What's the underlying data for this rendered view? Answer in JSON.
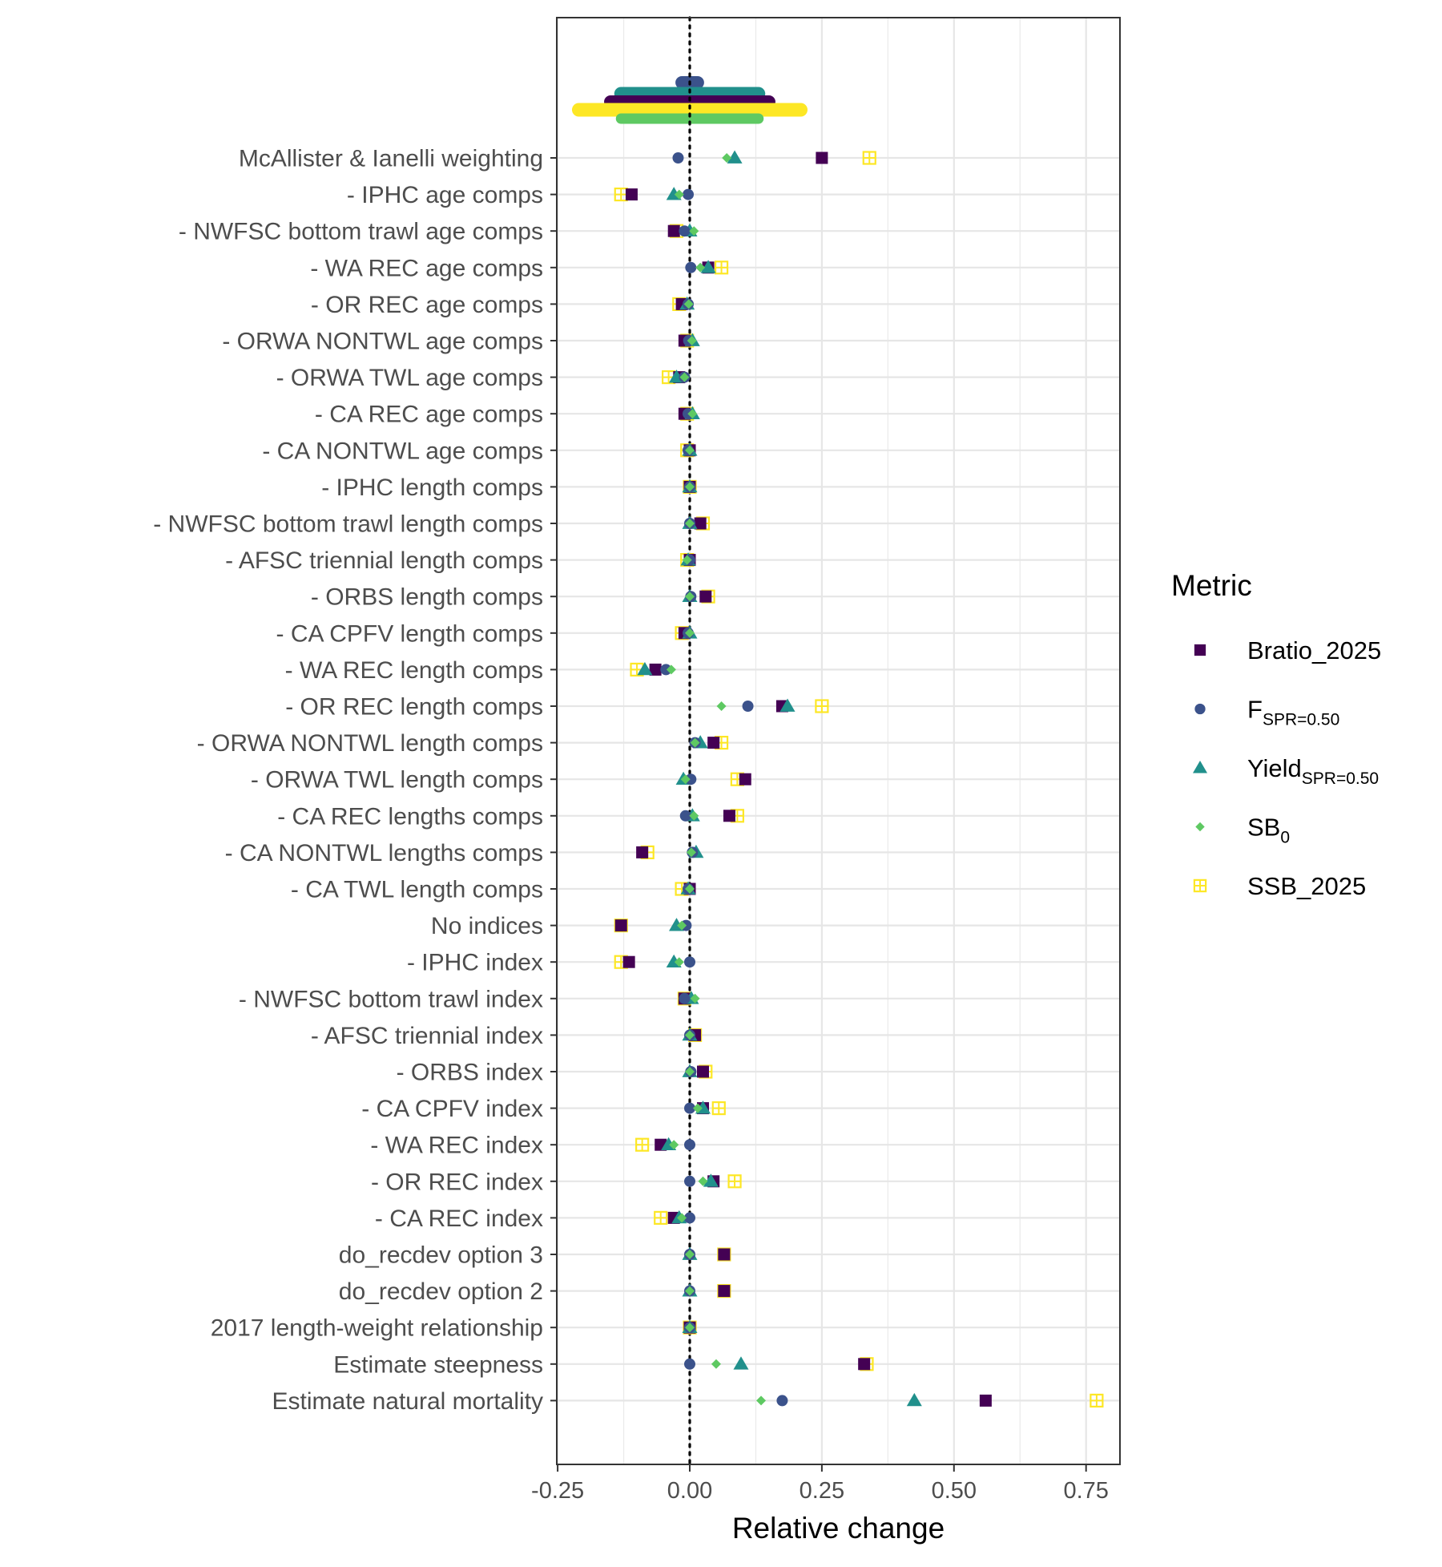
{
  "chart_data": {
    "type": "scatter",
    "xlabel": "Relative change",
    "ylabel": "",
    "xlim": [
      -0.25,
      0.82
    ],
    "x_ticks": [
      -0.25,
      0.0,
      0.25,
      0.5,
      0.75
    ],
    "x_tick_labels": [
      "-0.25",
      "0.00",
      "0.25",
      "0.50",
      "0.75"
    ],
    "reference_line_x": 0,
    "grid": true,
    "legend": {
      "title": "Metric",
      "placement": "right",
      "entries": [
        {
          "key": "bratio",
          "label": "Bratio_2025",
          "sub": "",
          "shape": "square",
          "color": "#440154"
        },
        {
          "key": "fspr",
          "label": "F",
          "sub": "SPR=0.50",
          "shape": "circle",
          "color": "#3b528b"
        },
        {
          "key": "yield",
          "label": "Yield",
          "sub": "SPR=0.50",
          "shape": "triangle",
          "color": "#21908c"
        },
        {
          "key": "sb0",
          "label": "SB",
          "sub": "0",
          "shape": "diamond",
          "color": "#5ec962"
        },
        {
          "key": "ssb",
          "label": "SSB_2025",
          "sub": "",
          "shape": "square-cross",
          "color": "#fde725"
        }
      ]
    },
    "intervals": [
      {
        "metric": "fspr",
        "low": -0.015,
        "high": 0.015
      },
      {
        "metric": "yield",
        "low": -0.13,
        "high": 0.13
      },
      {
        "metric": "bratio",
        "low": -0.15,
        "high": 0.15
      },
      {
        "metric": "ssb",
        "low": -0.21,
        "high": 0.21
      },
      {
        "metric": "sb0",
        "low": -0.13,
        "high": 0.13
      }
    ],
    "categories": [
      "McAllister & Ianelli weighting",
      "- IPHC age comps",
      "- NWFSC bottom trawl age comps",
      "- WA REC age comps",
      "- OR REC age comps",
      "- ORWA NONTWL age comps",
      "- ORWA TWL age comps",
      "- CA REC age comps",
      "- CA NONTWL age comps",
      "- IPHC length comps",
      "- NWFSC bottom trawl length comps",
      "- AFSC triennial length comps",
      "- ORBS length comps",
      "- CA CPFV length comps",
      "- WA REC length comps",
      "- OR REC length comps",
      "- ORWA NONTWL length comps",
      "- ORWA TWL length comps",
      "- CA REC lengths comps",
      "- CA NONTWL lengths comps",
      "- CA TWL length comps",
      "No indices",
      "- IPHC index",
      "- NWFSC bottom trawl index",
      "- AFSC triennial index",
      "- ORBS index",
      "- CA CPFV index",
      "- WA REC index",
      "- OR REC index",
      "- CA REC index",
      "do_recdev option 3",
      "do_recdev option 2",
      "2017 length-weight relationship",
      "Estimate steepness",
      "Estimate natural mortality"
    ],
    "series": [
      {
        "name": "Bratio_2025",
        "key": "bratio",
        "shape": "square",
        "color": "#440154",
        "values": [
          0.25,
          -0.11,
          -0.03,
          0.035,
          -0.015,
          -0.01,
          -0.02,
          -0.01,
          0.0,
          0.0,
          0.02,
          0.0,
          0.03,
          -0.01,
          -0.065,
          0.175,
          0.045,
          0.105,
          0.075,
          -0.09,
          0.0,
          -0.13,
          -0.115,
          -0.01,
          0.01,
          0.025,
          0.025,
          -0.055,
          0.045,
          -0.03,
          0.065,
          0.065,
          0.0,
          0.33,
          0.56
        ]
      },
      {
        "name": "FSPR=0.50",
        "key": "fspr",
        "shape": "circle",
        "color": "#3b528b",
        "values": [
          -0.022,
          -0.003,
          -0.01,
          0.002,
          -0.003,
          -0.002,
          -0.01,
          -0.003,
          -0.003,
          0.0,
          0.0,
          0.0,
          0.002,
          -0.003,
          -0.045,
          0.11,
          0.01,
          0.002,
          -0.008,
          0.005,
          -0.003,
          -0.007,
          0.0,
          -0.01,
          0.0,
          0.002,
          0.0,
          0.0,
          0.0,
          0.0,
          0.0,
          0.0,
          0.0,
          0.0,
          0.175
        ]
      },
      {
        "name": "YieldSPR=0.50",
        "key": "yield",
        "shape": "triangle",
        "color": "#21908c",
        "values": [
          0.085,
          -0.03,
          0.0,
          0.035,
          -0.005,
          0.005,
          -0.025,
          0.005,
          0.0,
          0.0,
          0.0,
          -0.003,
          0.0,
          0.0,
          -0.085,
          0.185,
          0.02,
          -0.012,
          0.005,
          0.012,
          -0.003,
          -0.025,
          -0.03,
          0.003,
          0.0,
          0.0,
          0.025,
          -0.04,
          0.04,
          -0.02,
          0.0,
          0.0,
          0.0,
          0.097,
          0.425
        ]
      },
      {
        "name": "SB0",
        "key": "sb0",
        "shape": "diamond",
        "color": "#5ec962",
        "values": [
          0.07,
          -0.02,
          0.008,
          0.02,
          -0.002,
          0.004,
          -0.01,
          0.005,
          0.0,
          0.0,
          0.0,
          -0.005,
          0.0,
          0.0,
          -0.035,
          0.06,
          0.01,
          -0.008,
          0.008,
          0.003,
          0.0,
          -0.015,
          -0.02,
          0.01,
          0.0,
          0.0,
          0.015,
          -0.03,
          0.025,
          -0.015,
          0.0,
          0.0,
          0.0,
          0.05,
          0.135
        ]
      },
      {
        "name": "SSB_2025",
        "key": "ssb",
        "shape": "square-cross",
        "color": "#fde725",
        "values": [
          0.34,
          -0.13,
          -0.025,
          0.06,
          -0.02,
          -0.005,
          -0.04,
          -0.005,
          -0.005,
          0.0,
          0.025,
          -0.005,
          0.035,
          -0.015,
          -0.1,
          0.25,
          0.06,
          0.09,
          0.09,
          -0.08,
          -0.015,
          -0.13,
          -0.13,
          -0.01,
          0.01,
          0.03,
          0.055,
          -0.09,
          0.085,
          -0.055,
          0.065,
          0.065,
          0.0,
          0.335,
          0.77
        ]
      }
    ]
  }
}
